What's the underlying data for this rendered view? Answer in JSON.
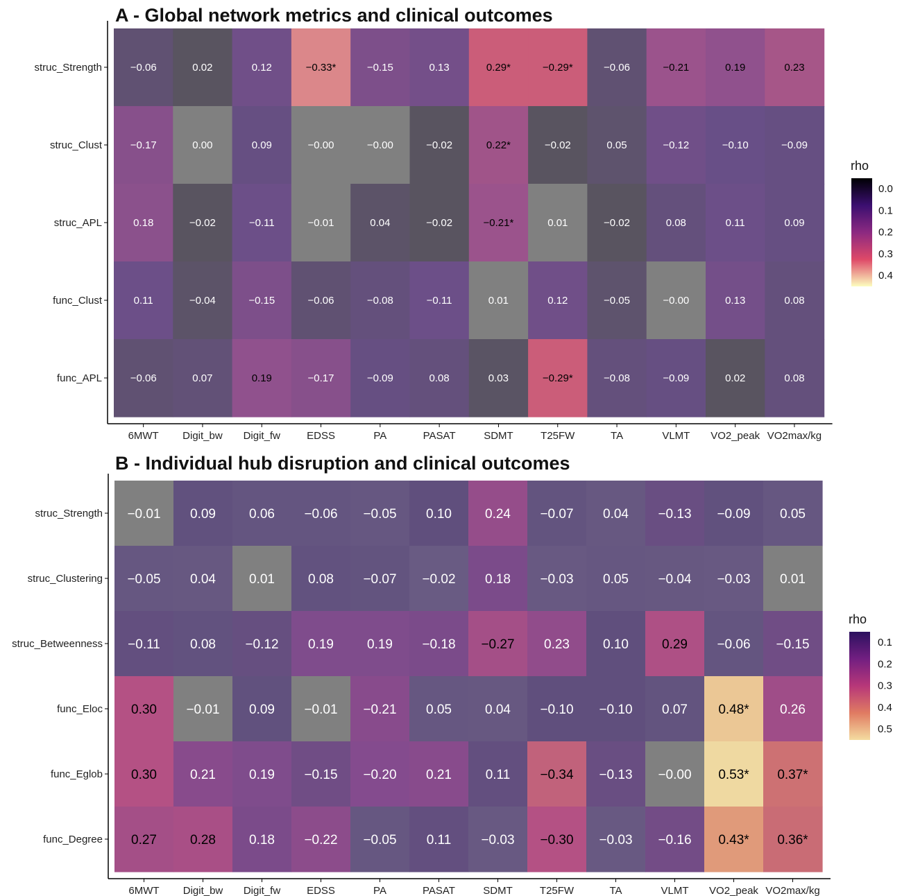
{
  "chart_data": [
    {
      "type": "heatmap",
      "title": "A - Global network metrics and clinical outcomes",
      "title_letter": "A",
      "title_text": " - Global network metrics and clinical outcomes",
      "x": [
        "6MWT",
        "Digit_bw",
        "Digit_fw",
        "EDSS",
        "PA",
        "PASAT",
        "SDMT",
        "T25FW",
        "TA",
        "VLMT",
        "VO2_peak",
        "VO2max/kg"
      ],
      "y": [
        "struc_Strength",
        "struc_Clust",
        "struc_APL",
        "func_Clust",
        "func_APL"
      ],
      "labels": [
        [
          "−0.06",
          "0.02",
          "0.12",
          "−0.33*",
          "−0.15",
          "0.13",
          "0.29*",
          "−0.29*",
          "−0.06",
          "−0.21",
          "0.19",
          "0.23"
        ],
        [
          "−0.17",
          "0.00",
          "0.09",
          "−0.00",
          "−0.00",
          "−0.02",
          "0.22*",
          "−0.02",
          "0.05",
          "−0.12",
          "−0.10",
          "−0.09"
        ],
        [
          "0.18",
          "−0.02",
          "−0.11",
          "−0.01",
          "0.04",
          "−0.02",
          "−0.21*",
          "0.01",
          "−0.02",
          "0.08",
          "0.11",
          "0.09"
        ],
        [
          "0.11",
          "−0.04",
          "−0.15",
          "−0.06",
          "−0.08",
          "−0.11",
          "0.01",
          "0.12",
          "−0.05",
          "−0.00",
          "0.13",
          "0.08"
        ],
        [
          "−0.06",
          "0.07",
          "0.19",
          "−0.17",
          "−0.09",
          "0.08",
          "0.03",
          "−0.29*",
          "−0.08",
          "−0.09",
          "0.02",
          "0.08"
        ]
      ],
      "values": [
        [
          -0.06,
          0.02,
          0.12,
          -0.33,
          -0.15,
          0.13,
          0.29,
          -0.29,
          -0.06,
          -0.21,
          0.19,
          0.23
        ],
        [
          -0.17,
          0.0,
          0.09,
          -0.0,
          -0.0,
          -0.02,
          0.22,
          -0.02,
          0.05,
          -0.12,
          -0.1,
          -0.09
        ],
        [
          0.18,
          -0.02,
          -0.11,
          -0.01,
          0.04,
          -0.02,
          -0.21,
          0.01,
          -0.02,
          0.08,
          0.11,
          0.09
        ],
        [
          0.11,
          -0.04,
          -0.15,
          -0.06,
          -0.08,
          -0.11,
          0.01,
          0.12,
          -0.05,
          -0.0,
          0.13,
          0.08
        ],
        [
          -0.06,
          0.07,
          0.19,
          -0.17,
          -0.09,
          0.08,
          0.03,
          -0.29,
          -0.08,
          -0.09,
          0.02,
          0.08
        ]
      ],
      "legend": {
        "title": "rho",
        "ticks": [
          "0.0",
          "0.1",
          "0.2",
          "0.3",
          "0.4"
        ],
        "range": [
          0.0,
          0.4
        ],
        "position": "right"
      },
      "dark_text_threshold": 0.185
    },
    {
      "type": "heatmap",
      "title": "B - Individual hub disruption and clinical outcomes",
      "title_letter": "B",
      "title_text": " - Individual hub disruption and clinical outcomes",
      "x": [
        "6MWT",
        "Digit_bw",
        "Digit_fw",
        "EDSS",
        "PA",
        "PASAT",
        "SDMT",
        "T25FW",
        "TA",
        "VLMT",
        "VO2_peak",
        "VO2max/kg"
      ],
      "y": [
        "struc_Strength",
        "struc_Clustering",
        "struc_Betweenness",
        "func_Eloc",
        "func_Eglob",
        "func_Degree"
      ],
      "labels": [
        [
          "−0.01",
          "0.09",
          "0.06",
          "−0.06",
          "−0.05",
          "0.10",
          "0.24",
          "−0.07",
          "0.04",
          "−0.13",
          "−0.09",
          "0.05"
        ],
        [
          "−0.05",
          "0.04",
          "0.01",
          "0.08",
          "−0.07",
          "−0.02",
          "0.18",
          "−0.03",
          "0.05",
          "−0.04",
          "−0.03",
          "0.01"
        ],
        [
          "−0.11",
          "0.08",
          "−0.12",
          "0.19",
          "0.19",
          "−0.18",
          "−0.27",
          "0.23",
          "0.10",
          "0.29",
          "−0.06",
          "−0.15"
        ],
        [
          "0.30",
          "−0.01",
          "0.09",
          "−0.01",
          "−0.21",
          "0.05",
          "0.04",
          "−0.10",
          "−0.10",
          "0.07",
          "0.48*",
          "0.26"
        ],
        [
          "0.30",
          "0.21",
          "0.19",
          "−0.15",
          "−0.20",
          "0.21",
          "0.11",
          "−0.34",
          "−0.13",
          "−0.00",
          "0.53*",
          "0.37*"
        ],
        [
          "0.27",
          "0.28",
          "0.18",
          "−0.22",
          "−0.05",
          "0.11",
          "−0.03",
          "−0.30",
          "−0.03",
          "−0.16",
          "0.43*",
          "0.36*"
        ]
      ],
      "values": [
        [
          -0.01,
          0.09,
          0.06,
          -0.06,
          -0.05,
          0.1,
          0.24,
          -0.07,
          0.04,
          -0.13,
          -0.09,
          0.05
        ],
        [
          -0.05,
          0.04,
          0.01,
          0.08,
          -0.07,
          -0.02,
          0.18,
          -0.03,
          0.05,
          -0.04,
          -0.03,
          0.01
        ],
        [
          -0.11,
          0.08,
          -0.12,
          0.19,
          0.19,
          -0.18,
          -0.27,
          0.23,
          0.1,
          0.29,
          -0.06,
          -0.15
        ],
        [
          0.3,
          -0.01,
          0.09,
          -0.01,
          -0.21,
          0.05,
          0.04,
          -0.1,
          -0.1,
          0.07,
          0.48,
          0.26
        ],
        [
          0.3,
          0.21,
          0.19,
          -0.15,
          -0.2,
          0.21,
          0.11,
          -0.34,
          -0.13,
          -0.0,
          0.53,
          0.37
        ],
        [
          0.27,
          0.28,
          0.18,
          -0.22,
          -0.05,
          0.11,
          -0.03,
          -0.3,
          -0.03,
          -0.16,
          0.43,
          0.36
        ]
      ],
      "legend": {
        "title": "rho",
        "ticks": [
          "0.1",
          "0.2",
          "0.3",
          "0.4",
          "0.5"
        ],
        "range": [
          0.1,
          0.5
        ],
        "position": "right"
      },
      "dark_text_threshold": 0.265
    }
  ]
}
